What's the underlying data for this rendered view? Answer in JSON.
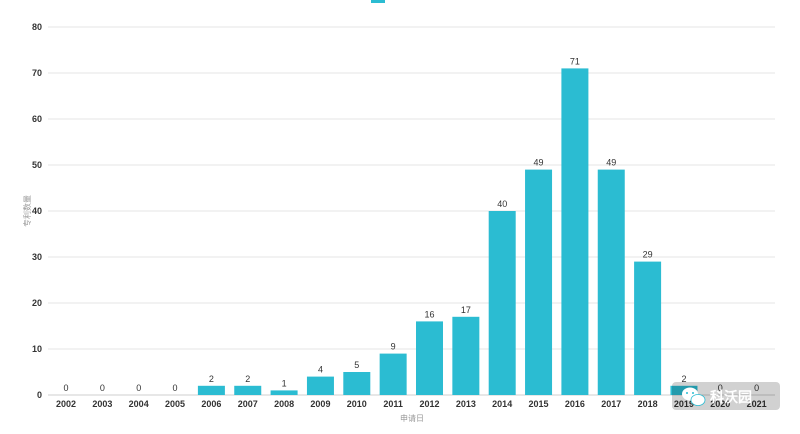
{
  "chart_data": {
    "type": "bar",
    "title": "",
    "xlabel": "申请日",
    "ylabel": "专利数量",
    "ylim": [
      0,
      80
    ],
    "yticks": [
      0,
      10,
      20,
      30,
      40,
      50,
      60,
      70,
      80
    ],
    "grid": true,
    "bar_color": "#2bbcd2",
    "categories": [
      "2002",
      "2003",
      "2004",
      "2005",
      "2006",
      "2007",
      "2008",
      "2009",
      "2010",
      "2011",
      "2012",
      "2013",
      "2014",
      "2015",
      "2016",
      "2017",
      "2018",
      "2019",
      "2020",
      "2021"
    ],
    "values": [
      0,
      0,
      0,
      0,
      2,
      2,
      1,
      4,
      5,
      9,
      16,
      17,
      40,
      49,
      71,
      49,
      29,
      2,
      0,
      0
    ],
    "data_labels": [
      "0",
      "0",
      "0",
      "0",
      "2",
      "2",
      "1",
      "4",
      "5",
      "9",
      "16",
      "17",
      "40",
      "49",
      "71",
      "49",
      "29",
      "2",
      "0",
      "0"
    ]
  },
  "watermark": {
    "text": "科沃园",
    "icon": "wechat-icon"
  }
}
